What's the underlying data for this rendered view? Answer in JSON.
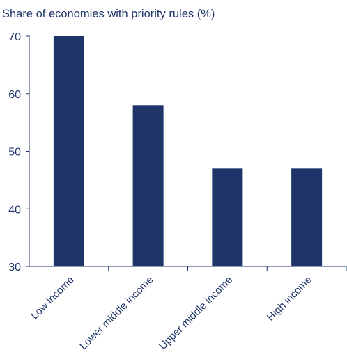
{
  "chart_data": {
    "type": "bar",
    "title": "Share of economies with priority rules (%)",
    "xlabel": "",
    "ylabel": "",
    "categories": [
      "Low income",
      "Lower middle income",
      "Upper middle income",
      "High income"
    ],
    "values": [
      70,
      58,
      47,
      47
    ],
    "ylim": [
      30,
      70
    ],
    "yticks": [
      30,
      40,
      50,
      60,
      70
    ],
    "bar_color": "#1f3569",
    "grid": false,
    "legend": "none"
  }
}
